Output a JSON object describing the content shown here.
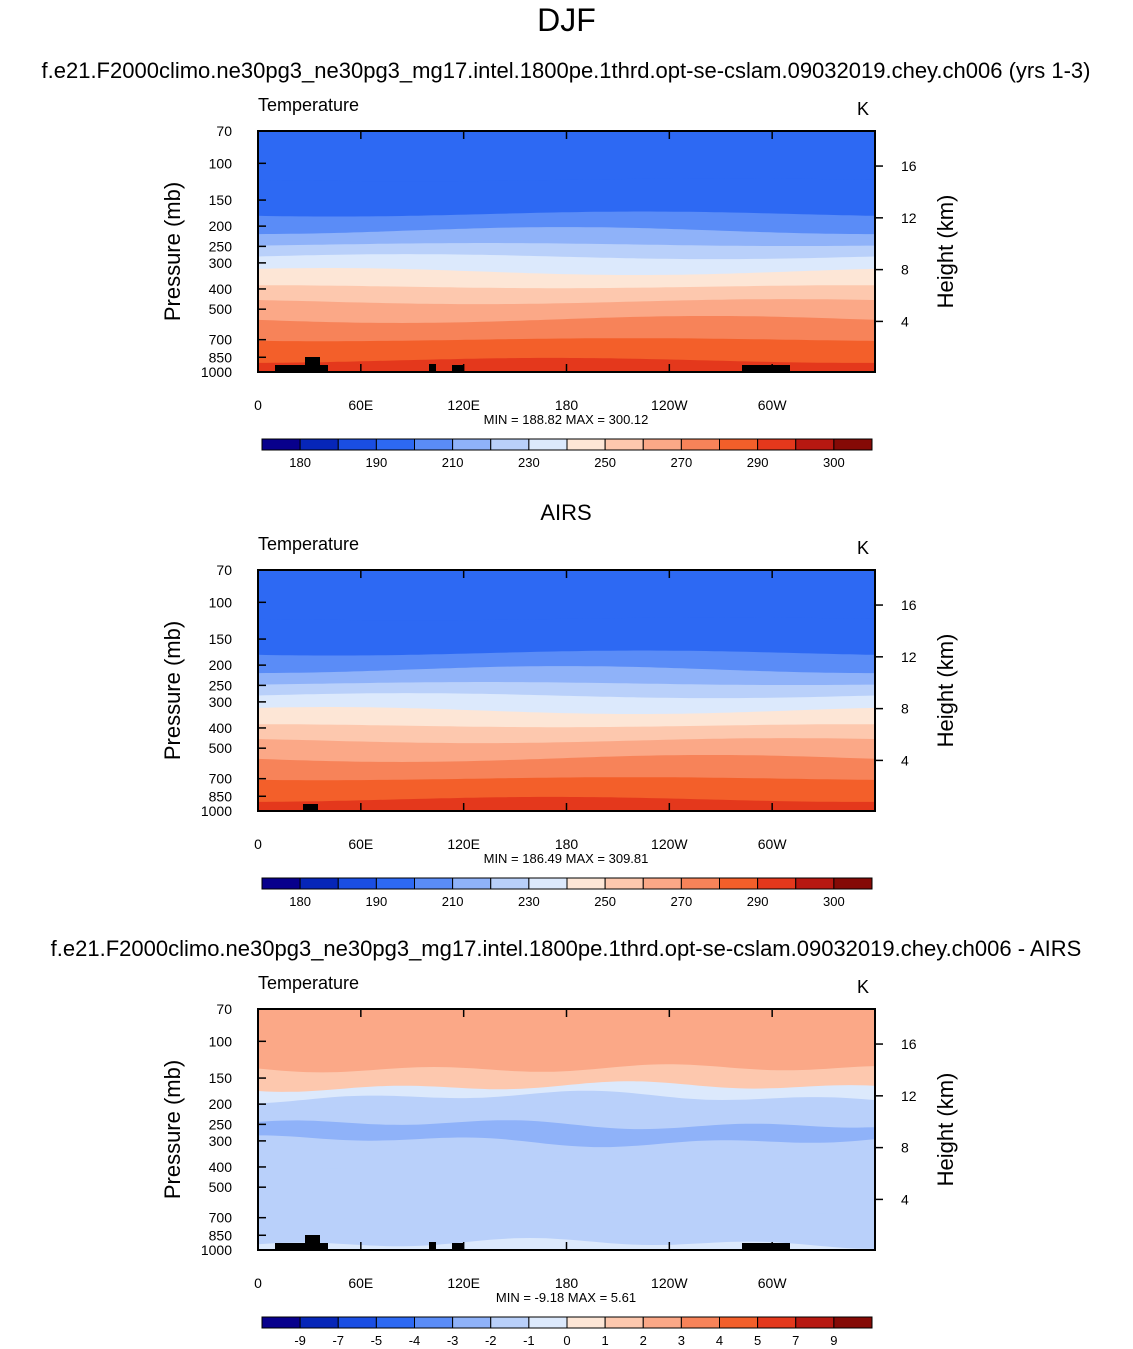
{
  "page_title": "DJF",
  "colors": {
    "frame": "#000000",
    "terrain": "#000000"
  },
  "chart_data": [
    {
      "id": "model",
      "type": "contour",
      "heading": "f.e21.F2000climo.ne30pg3_ne30pg3_mg17.intel.1800pe.1thrd.opt-se-cslam.09032019.chey.ch006 (yrs 1-3)",
      "left_title": "Temperature",
      "right_title": "K",
      "ylabel": "Pressure (mb)",
      "ylabel_right": "Height (km)",
      "x_ticks": [
        "0",
        "60E",
        "120E",
        "180",
        "120W",
        "60W"
      ],
      "pressure_ticks": [
        "70",
        "100",
        "150",
        "200",
        "250",
        "300",
        "400",
        "500",
        "700",
        "850",
        "1000"
      ],
      "height_ticks": [
        "16",
        "12",
        "8",
        "4"
      ],
      "min_max_text": "MIN = 188.82  MAX = 300.12",
      "min": 188.82,
      "max": 300.12,
      "ylim_mb": [
        70,
        1000
      ],
      "colorbar": {
        "labels": [
          "180",
          "190",
          "210",
          "230",
          "250",
          "270",
          "290",
          "300"
        ],
        "colors": [
          "#08008c",
          "#0626b8",
          "#1a4ee3",
          "#2d69f3",
          "#5a8cf7",
          "#8fb2f9",
          "#b9d0fa",
          "#dce9fc",
          "#fde6d6",
          "#fdc8ae",
          "#fba887",
          "#f78359",
          "#f35f2a",
          "#e4381c",
          "#b71811",
          "#850a06"
        ]
      },
      "bands": [
        "#2d69f3",
        "#2d69f3",
        "#5a8cf7",
        "#8fb2f9",
        "#b9d0fa",
        "#dce9fc",
        "#fde6d6",
        "#fdc8ae",
        "#fba887",
        "#f78359",
        "#f35f2a",
        "#e4381c"
      ],
      "level_boundaries_mb": [
        120,
        175,
        210,
        245,
        280,
        330,
        390,
        460,
        560,
        700,
        880
      ],
      "has_terrain": true
    },
    {
      "id": "airs",
      "type": "contour",
      "heading": "AIRS",
      "left_title": "Temperature",
      "right_title": "K",
      "ylabel": "Pressure (mb)",
      "ylabel_right": "Height (km)",
      "x_ticks": [
        "0",
        "60E",
        "120E",
        "180",
        "120W",
        "60W"
      ],
      "pressure_ticks": [
        "70",
        "100",
        "150",
        "200",
        "250",
        "300",
        "400",
        "500",
        "700",
        "850",
        "1000"
      ],
      "height_ticks": [
        "16",
        "12",
        "8",
        "4"
      ],
      "min_max_text": "MIN = 186.49  MAX = 309.81",
      "min": 186.49,
      "max": 309.81,
      "ylim_mb": [
        70,
        1000
      ],
      "colorbar": {
        "labels": [
          "180",
          "190",
          "210",
          "230",
          "250",
          "270",
          "290",
          "300"
        ],
        "colors": [
          "#08008c",
          "#0626b8",
          "#1a4ee3",
          "#2d69f3",
          "#5a8cf7",
          "#8fb2f9",
          "#b9d0fa",
          "#dce9fc",
          "#fde6d6",
          "#fdc8ae",
          "#fba887",
          "#f78359",
          "#f35f2a",
          "#e4381c",
          "#b71811",
          "#850a06"
        ]
      },
      "bands": [
        "#2d69f3",
        "#2d69f3",
        "#5a8cf7",
        "#8fb2f9",
        "#b9d0fa",
        "#dce9fc",
        "#fde6d6",
        "#fdc8ae",
        "#fba887",
        "#f78359",
        "#f35f2a",
        "#e4381c"
      ],
      "level_boundaries_mb": [
        120,
        175,
        210,
        245,
        280,
        330,
        390,
        460,
        560,
        700,
        880
      ],
      "has_terrain": true
    },
    {
      "id": "difference",
      "type": "contour",
      "heading": "f.e21.F2000climo.ne30pg3_ne30pg3_mg17.intel.1800pe.1thrd.opt-se-cslam.09032019.chey.ch006 - AIRS",
      "left_title": "Temperature",
      "right_title": "K",
      "ylabel": "Pressure (mb)",
      "ylabel_right": "Height (km)",
      "x_ticks": [
        "0",
        "60E",
        "120E",
        "180",
        "120W",
        "60W"
      ],
      "pressure_ticks": [
        "70",
        "100",
        "150",
        "200",
        "250",
        "300",
        "400",
        "500",
        "700",
        "850",
        "1000"
      ],
      "height_ticks": [
        "16",
        "12",
        "8",
        "4"
      ],
      "min_max_text": "MIN =  -9.18  MAX =   5.61",
      "min": -9.18,
      "max": 5.61,
      "ylim_mb": [
        70,
        1000
      ],
      "colorbar": {
        "labels": [
          "-9",
          "-7",
          "-5",
          "-4",
          "-3",
          "-2",
          "-1",
          "0",
          "1",
          "2",
          "3",
          "4",
          "5",
          "7",
          "9"
        ],
        "colors": [
          "#08008c",
          "#0626b8",
          "#1a4ee3",
          "#2d69f3",
          "#5a8cf7",
          "#8fb2f9",
          "#b9d0fa",
          "#dce9fc",
          "#fde6d6",
          "#fdc8ae",
          "#fba887",
          "#f78359",
          "#f35f2a",
          "#e4381c",
          "#b71811",
          "#850a06"
        ]
      },
      "bands": [
        "#fba887",
        "#fdc8ae",
        "#dce9fc",
        "#b9d0fa",
        "#b9d0fa",
        "#8fb2f9",
        "#b9d0fa",
        "#b9d0fa",
        "#b9d0fa",
        "#b9d0fa",
        "#b9d0fa",
        "#dce9fc"
      ],
      "level_boundaries_mb": [
        135,
        165,
        185,
        215,
        250,
        300,
        400,
        520,
        700,
        820,
        930
      ],
      "has_terrain": true
    }
  ]
}
